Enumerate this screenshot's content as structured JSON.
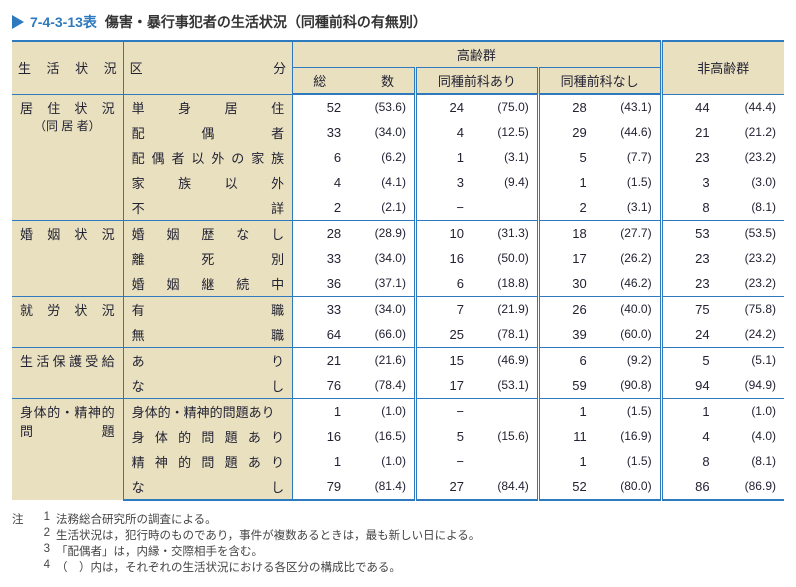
{
  "table_number": "7-4-3-13表",
  "title": "傷害・暴行事犯者の生活状況（同種前科の有無別）",
  "headers": {
    "life_situation": "生 活 状 況",
    "classification": "区　　　　　分",
    "elderly_group": "高齢群",
    "total": "総　　数",
    "with_record": "同種前科あり",
    "without_record": "同種前科なし",
    "non_elderly": "非高齢群"
  },
  "sections": [
    {
      "category": "居 住 状 況",
      "category_sub": "（同 居 者）",
      "rows": [
        {
          "label": "単　身　居　住",
          "v": [
            "52",
            "(53.6)",
            "24",
            "(75.0)",
            "28",
            "(43.1)",
            "44",
            "(44.4)"
          ]
        },
        {
          "label": "配　　偶　　者",
          "v": [
            "33",
            "(34.0)",
            "4",
            "(12.5)",
            "29",
            "(44.6)",
            "21",
            "(21.2)"
          ]
        },
        {
          "label": "配偶者以外の家族",
          "v": [
            "6",
            "(6.2)",
            "1",
            "(3.1)",
            "5",
            "(7.7)",
            "23",
            "(23.2)"
          ]
        },
        {
          "label": "家　族　以　外",
          "v": [
            "4",
            "(4.1)",
            "3",
            "(9.4)",
            "1",
            "(1.5)",
            "3",
            "(3.0)"
          ]
        },
        {
          "label": "不　　　　　詳",
          "v": [
            "2",
            "(2.1)",
            "−",
            "",
            "2",
            "(3.1)",
            "8",
            "(8.1)"
          ]
        }
      ]
    },
    {
      "category": "婚 姻 状 況",
      "rows": [
        {
          "label": "婚 姻 歴 な し",
          "v": [
            "28",
            "(28.9)",
            "10",
            "(31.3)",
            "18",
            "(27.7)",
            "53",
            "(53.5)"
          ]
        },
        {
          "label": "離　　死　　別",
          "v": [
            "33",
            "(34.0)",
            "16",
            "(50.0)",
            "17",
            "(26.2)",
            "23",
            "(23.2)"
          ]
        },
        {
          "label": "婚 姻 継 続 中",
          "v": [
            "36",
            "(37.1)",
            "6",
            "(18.8)",
            "30",
            "(46.2)",
            "23",
            "(23.2)"
          ]
        }
      ]
    },
    {
      "category": "就 労 状 況",
      "rows": [
        {
          "label": "有　　　　　職",
          "v": [
            "33",
            "(34.0)",
            "7",
            "(21.9)",
            "26",
            "(40.0)",
            "75",
            "(75.8)"
          ]
        },
        {
          "label": "無　　　　　職",
          "v": [
            "64",
            "(66.0)",
            "25",
            "(78.1)",
            "39",
            "(60.0)",
            "24",
            "(24.2)"
          ]
        }
      ]
    },
    {
      "category": "生活保護受給",
      "rows": [
        {
          "label": "あ　　　　　り",
          "v": [
            "21",
            "(21.6)",
            "15",
            "(46.9)",
            "6",
            "(9.2)",
            "5",
            "(5.1)"
          ]
        },
        {
          "label": "な　　　　　し",
          "v": [
            "76",
            "(78.4)",
            "17",
            "(53.1)",
            "59",
            "(90.8)",
            "94",
            "(94.9)"
          ]
        }
      ]
    },
    {
      "category": "身体的・精神的",
      "category_sub2": "問　　　　題",
      "rows": [
        {
          "label": "身体的・精神的問題あり",
          "nojust": true,
          "v": [
            "1",
            "(1.0)",
            "−",
            "",
            "1",
            "(1.5)",
            "1",
            "(1.0)"
          ]
        },
        {
          "label": "身 体 的 問 題 あ り",
          "v": [
            "16",
            "(16.5)",
            "5",
            "(15.6)",
            "11",
            "(16.9)",
            "4",
            "(4.0)"
          ]
        },
        {
          "label": "精 神 的 問 題 あ り",
          "v": [
            "1",
            "(1.0)",
            "−",
            "",
            "1",
            "(1.5)",
            "8",
            "(8.1)"
          ]
        },
        {
          "label": "な　　　　　し",
          "v": [
            "79",
            "(81.4)",
            "27",
            "(84.4)",
            "52",
            "(80.0)",
            "86",
            "(86.9)"
          ]
        }
      ]
    }
  ],
  "notes_label": "注",
  "notes": [
    "法務総合研究所の調査による。",
    "生活状況は，犯行時のものであり，事件が複数あるときは，最も新しい日による。",
    "「配偶者」は，内縁・交際相手を含む。",
    "（　）内は，それぞれの生活状況における各区分の構成比である。"
  ],
  "colors": {
    "accent": "#2e7abf",
    "header_bg": "#e9e0c0"
  }
}
